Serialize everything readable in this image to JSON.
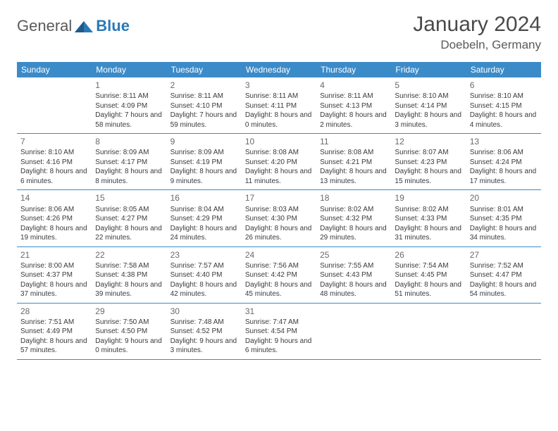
{
  "logo": {
    "text1": "General",
    "text2": "Blue"
  },
  "title": "January 2024",
  "location": "Doebeln, Germany",
  "colors": {
    "header_bg": "#3b8bc9",
    "header_text": "#ffffff",
    "body_text": "#3a3a3a",
    "border": "#3b8bc9"
  },
  "day_headers": [
    "Sunday",
    "Monday",
    "Tuesday",
    "Wednesday",
    "Thursday",
    "Friday",
    "Saturday"
  ],
  "weeks": [
    [
      {
        "num": "",
        "sunrise": "",
        "sunset": "",
        "daylight": ""
      },
      {
        "num": "1",
        "sunrise": "8:11 AM",
        "sunset": "4:09 PM",
        "daylight": "7 hours and 58 minutes."
      },
      {
        "num": "2",
        "sunrise": "8:11 AM",
        "sunset": "4:10 PM",
        "daylight": "7 hours and 59 minutes."
      },
      {
        "num": "3",
        "sunrise": "8:11 AM",
        "sunset": "4:11 PM",
        "daylight": "8 hours and 0 minutes."
      },
      {
        "num": "4",
        "sunrise": "8:11 AM",
        "sunset": "4:13 PM",
        "daylight": "8 hours and 2 minutes."
      },
      {
        "num": "5",
        "sunrise": "8:10 AM",
        "sunset": "4:14 PM",
        "daylight": "8 hours and 3 minutes."
      },
      {
        "num": "6",
        "sunrise": "8:10 AM",
        "sunset": "4:15 PM",
        "daylight": "8 hours and 4 minutes."
      }
    ],
    [
      {
        "num": "7",
        "sunrise": "8:10 AM",
        "sunset": "4:16 PM",
        "daylight": "8 hours and 6 minutes."
      },
      {
        "num": "8",
        "sunrise": "8:09 AM",
        "sunset": "4:17 PM",
        "daylight": "8 hours and 8 minutes."
      },
      {
        "num": "9",
        "sunrise": "8:09 AM",
        "sunset": "4:19 PM",
        "daylight": "8 hours and 9 minutes."
      },
      {
        "num": "10",
        "sunrise": "8:08 AM",
        "sunset": "4:20 PM",
        "daylight": "8 hours and 11 minutes."
      },
      {
        "num": "11",
        "sunrise": "8:08 AM",
        "sunset": "4:21 PM",
        "daylight": "8 hours and 13 minutes."
      },
      {
        "num": "12",
        "sunrise": "8:07 AM",
        "sunset": "4:23 PM",
        "daylight": "8 hours and 15 minutes."
      },
      {
        "num": "13",
        "sunrise": "8:06 AM",
        "sunset": "4:24 PM",
        "daylight": "8 hours and 17 minutes."
      }
    ],
    [
      {
        "num": "14",
        "sunrise": "8:06 AM",
        "sunset": "4:26 PM",
        "daylight": "8 hours and 19 minutes."
      },
      {
        "num": "15",
        "sunrise": "8:05 AM",
        "sunset": "4:27 PM",
        "daylight": "8 hours and 22 minutes."
      },
      {
        "num": "16",
        "sunrise": "8:04 AM",
        "sunset": "4:29 PM",
        "daylight": "8 hours and 24 minutes."
      },
      {
        "num": "17",
        "sunrise": "8:03 AM",
        "sunset": "4:30 PM",
        "daylight": "8 hours and 26 minutes."
      },
      {
        "num": "18",
        "sunrise": "8:02 AM",
        "sunset": "4:32 PM",
        "daylight": "8 hours and 29 minutes."
      },
      {
        "num": "19",
        "sunrise": "8:02 AM",
        "sunset": "4:33 PM",
        "daylight": "8 hours and 31 minutes."
      },
      {
        "num": "20",
        "sunrise": "8:01 AM",
        "sunset": "4:35 PM",
        "daylight": "8 hours and 34 minutes."
      }
    ],
    [
      {
        "num": "21",
        "sunrise": "8:00 AM",
        "sunset": "4:37 PM",
        "daylight": "8 hours and 37 minutes."
      },
      {
        "num": "22",
        "sunrise": "7:58 AM",
        "sunset": "4:38 PM",
        "daylight": "8 hours and 39 minutes."
      },
      {
        "num": "23",
        "sunrise": "7:57 AM",
        "sunset": "4:40 PM",
        "daylight": "8 hours and 42 minutes."
      },
      {
        "num": "24",
        "sunrise": "7:56 AM",
        "sunset": "4:42 PM",
        "daylight": "8 hours and 45 minutes."
      },
      {
        "num": "25",
        "sunrise": "7:55 AM",
        "sunset": "4:43 PM",
        "daylight": "8 hours and 48 minutes."
      },
      {
        "num": "26",
        "sunrise": "7:54 AM",
        "sunset": "4:45 PM",
        "daylight": "8 hours and 51 minutes."
      },
      {
        "num": "27",
        "sunrise": "7:52 AM",
        "sunset": "4:47 PM",
        "daylight": "8 hours and 54 minutes."
      }
    ],
    [
      {
        "num": "28",
        "sunrise": "7:51 AM",
        "sunset": "4:49 PM",
        "daylight": "8 hours and 57 minutes."
      },
      {
        "num": "29",
        "sunrise": "7:50 AM",
        "sunset": "4:50 PM",
        "daylight": "9 hours and 0 minutes."
      },
      {
        "num": "30",
        "sunrise": "7:48 AM",
        "sunset": "4:52 PM",
        "daylight": "9 hours and 3 minutes."
      },
      {
        "num": "31",
        "sunrise": "7:47 AM",
        "sunset": "4:54 PM",
        "daylight": "9 hours and 6 minutes."
      },
      {
        "num": "",
        "sunrise": "",
        "sunset": "",
        "daylight": ""
      },
      {
        "num": "",
        "sunrise": "",
        "sunset": "",
        "daylight": ""
      },
      {
        "num": "",
        "sunrise": "",
        "sunset": "",
        "daylight": ""
      }
    ]
  ],
  "labels": {
    "sunrise": "Sunrise:",
    "sunset": "Sunset:",
    "daylight": "Daylight:"
  }
}
